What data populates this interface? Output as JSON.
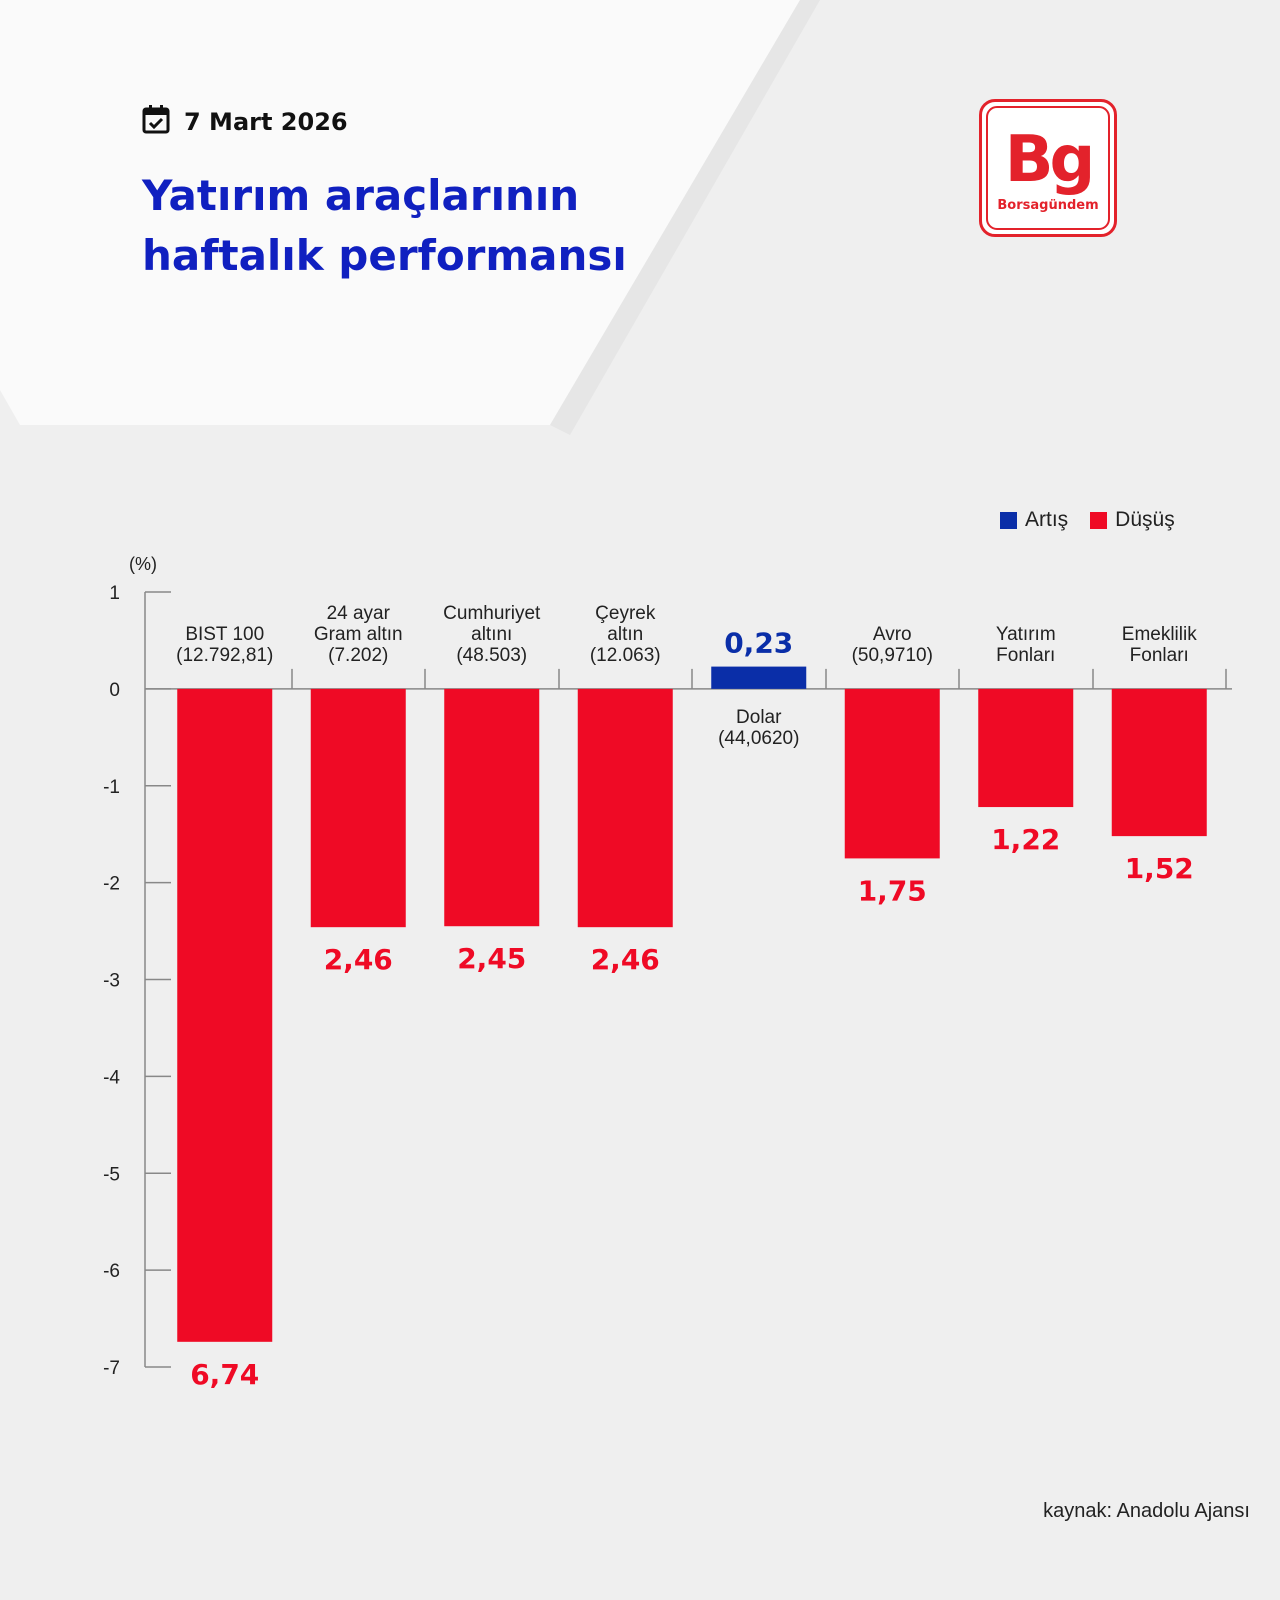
{
  "header": {
    "date": "7 Mart 2026",
    "title_line1": "Yatırım araçlarının",
    "title_line2": "haftalık performansı",
    "logo_mark": "Bg",
    "logo_wordmark": "Borsagündem",
    "icons": {
      "date": "calendar-check-icon"
    }
  },
  "footer": {
    "source": "kaynak: Anadolu Ajansı"
  },
  "colors": {
    "increase": "#0a2ea8",
    "decrease": "#ef0a25",
    "title": "#1020c0",
    "logo": "#e3222b"
  },
  "chart_data": {
    "type": "bar",
    "ylabel": "(%)",
    "ylim": [
      -7,
      1
    ],
    "yticks": [
      1,
      0,
      -1,
      -2,
      -3,
      -4,
      -5,
      -6,
      -7
    ],
    "legend": [
      {
        "label": "Artış",
        "color": "#0a2ea8"
      },
      {
        "label": "Düşüş",
        "color": "#ef0a25"
      }
    ],
    "legend_position": "top-right",
    "grid": false,
    "categories": [
      [
        "BIST 100",
        "(12.792,81)"
      ],
      [
        "24 ayar",
        "Gram altın",
        "(7.202)"
      ],
      [
        "Cumhuriyet",
        "altını",
        "(48.503)"
      ],
      [
        "Çeyrek",
        "altın",
        "(12.063)"
      ],
      [
        "Dolar",
        "(44,0620)"
      ],
      [
        "Avro",
        "(50,9710)"
      ],
      [
        "Yatırım",
        "Fonları"
      ],
      [
        "Emeklilik",
        "Fonları"
      ]
    ],
    "values": [
      -6.74,
      -2.46,
      -2.45,
      -2.46,
      0.23,
      -1.75,
      -1.22,
      -1.52
    ],
    "value_labels": [
      "6,74",
      "2,46",
      "2,45",
      "2,46",
      "0,23",
      "1,75",
      "1,22",
      "1,52"
    ]
  }
}
